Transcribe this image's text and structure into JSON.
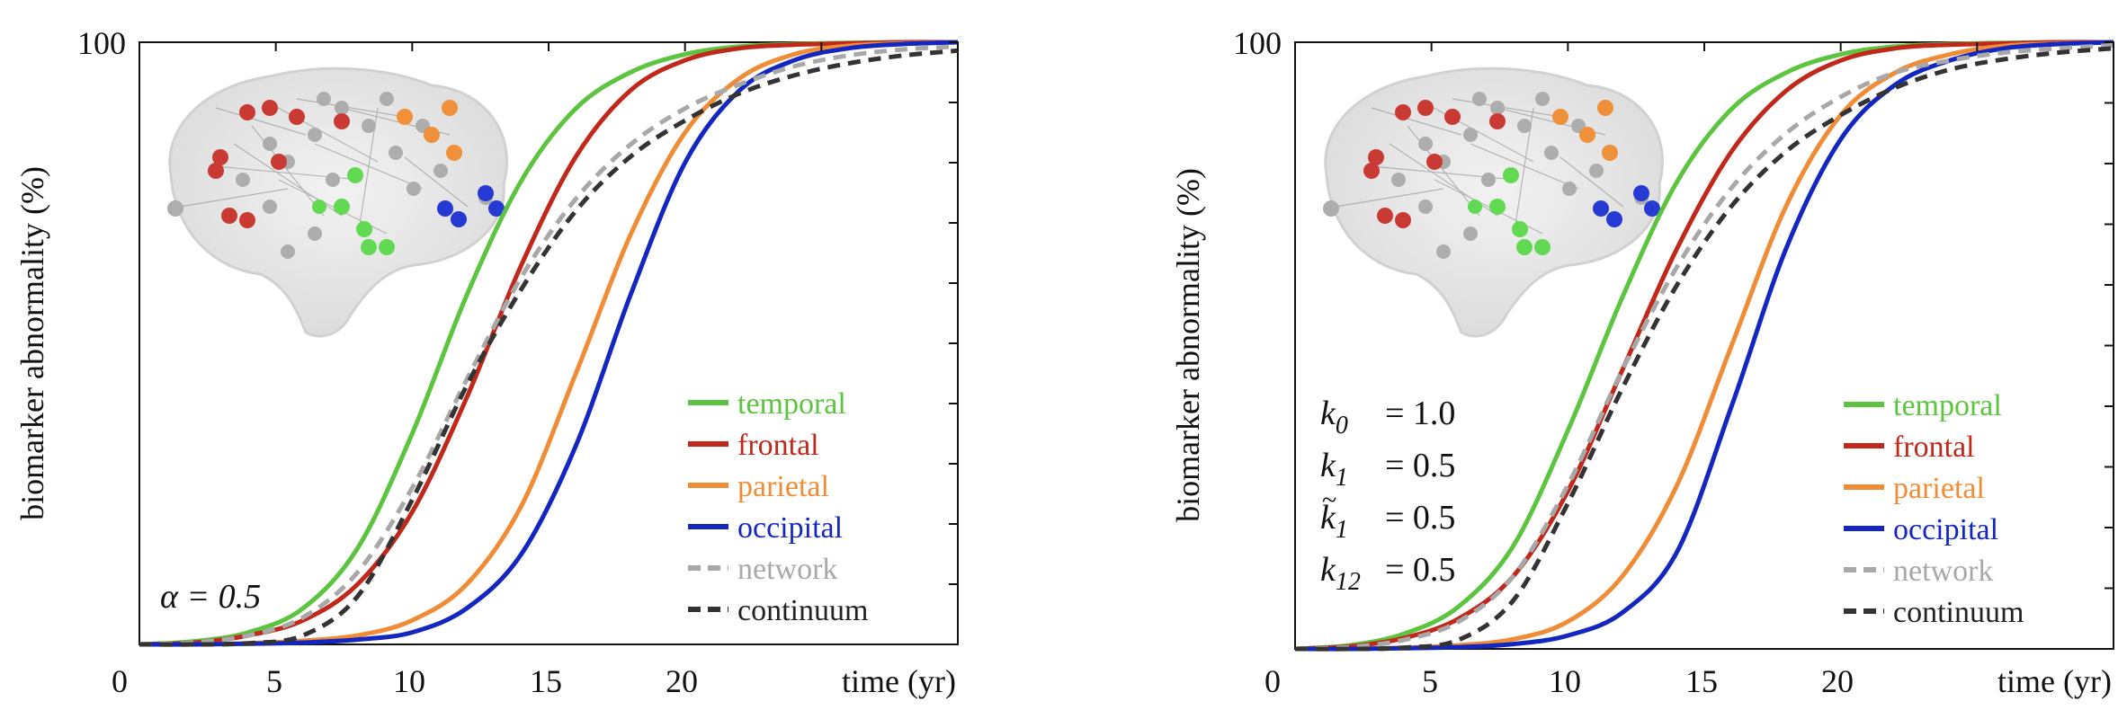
{
  "chart_data": [
    {
      "type": "line",
      "ylabel": "biomarker abnormality (%)",
      "xlabel": "time (yr)",
      "xlim": [
        0,
        30
      ],
      "ylim": [
        0,
        100
      ],
      "x_ticks": [
        "0",
        "5",
        "10",
        "15",
        "20"
      ],
      "y_ticks": [
        "100"
      ],
      "annotation": "α = 0.5",
      "legend": {
        "placement": "bottom-right",
        "entries": [
          "temporal",
          "frontal",
          "parietal",
          "occipital",
          "network",
          "continuum"
        ]
      },
      "series": [
        {
          "name": "temporal",
          "color": "#5cc43e",
          "dash": "solid",
          "x": [
            0,
            2,
            4,
            6,
            8,
            10,
            12,
            14,
            16,
            18,
            20,
            22,
            24,
            26,
            28,
            30
          ],
          "y": [
            0,
            0.5,
            2,
            6,
            16,
            35,
            58,
            77,
            89,
            95,
            98,
            99.3,
            99.7,
            99.9,
            100,
            100
          ]
        },
        {
          "name": "frontal",
          "color": "#c0281c",
          "dash": "solid",
          "x": [
            0,
            2,
            4,
            6,
            8,
            10,
            12,
            14,
            16,
            18,
            20,
            22,
            24,
            26,
            28,
            30
          ],
          "y": [
            0,
            0.3,
            1.5,
            4,
            10,
            22,
            41,
            63,
            81,
            92,
            97,
            99,
            99.6,
            99.8,
            100,
            100
          ]
        },
        {
          "name": "parietal",
          "color": "#f08c36",
          "dash": "solid",
          "x": [
            0,
            2,
            4,
            6,
            8,
            10,
            12,
            14,
            16,
            18,
            20,
            22,
            24,
            26,
            28,
            30
          ],
          "y": [
            0,
            0,
            0.2,
            0.6,
            1.5,
            4,
            10,
            23,
            45,
            68,
            85,
            94,
            98,
            99.4,
            99.8,
            100
          ]
        },
        {
          "name": "occipital",
          "color": "#1426c0",
          "dash": "solid",
          "x": [
            0,
            2,
            4,
            6,
            8,
            10,
            12,
            14,
            16,
            18,
            20,
            22,
            24,
            26,
            28,
            30
          ],
          "y": [
            0,
            0,
            0.1,
            0.3,
            0.8,
            2,
            6,
            15,
            33,
            58,
            80,
            92,
            97,
            99,
            99.7,
            100
          ]
        },
        {
          "name": "network",
          "color": "#a8a8a8",
          "dash": "dashed",
          "x": [
            0,
            2,
            4,
            6,
            8,
            10,
            12,
            14,
            16,
            18,
            20,
            22,
            24,
            26,
            28,
            30
          ],
          "y": [
            0,
            0.3,
            1.5,
            4.5,
            12,
            26,
            44,
            61,
            74,
            83,
            89,
            93,
            96,
            97.8,
            98.8,
            99.3
          ]
        },
        {
          "name": "continuum",
          "color": "#333333",
          "dash": "dashed",
          "x": [
            0,
            2,
            4,
            6,
            8,
            10,
            12,
            14,
            16,
            18,
            20,
            22,
            24,
            26,
            28,
            30
          ],
          "y": [
            0,
            0,
            0.2,
            1.5,
            8,
            24,
            43,
            59,
            72,
            81,
            87,
            91.5,
            94.5,
            96.5,
            97.8,
            98.6
          ]
        }
      ]
    },
    {
      "type": "line",
      "ylabel": "biomarker abnormality (%)",
      "xlabel": "time (yr)",
      "xlim": [
        0,
        30
      ],
      "ylim": [
        0,
        100
      ],
      "x_ticks": [
        "0",
        "5",
        "10",
        "15",
        "20"
      ],
      "y_ticks": [
        "100"
      ],
      "parameters": [
        {
          "symbol": "k",
          "subscript": "0",
          "value": "= 1.0",
          "tilde": false
        },
        {
          "symbol": "k",
          "subscript": "1",
          "value": "= 0.5",
          "tilde": false
        },
        {
          "symbol": "k",
          "subscript": "1",
          "value": "= 0.5",
          "tilde": true
        },
        {
          "symbol": "k",
          "subscript": "12",
          "value": "= 0.5",
          "tilde": false
        }
      ],
      "legend": {
        "placement": "bottom-right",
        "entries": [
          "temporal",
          "frontal",
          "parietal",
          "occipital",
          "network",
          "continuum"
        ]
      },
      "series": [
        {
          "name": "temporal",
          "color": "#5cc43e",
          "dash": "solid",
          "x": [
            0,
            2,
            4,
            6,
            8,
            10,
            12,
            14,
            16,
            18,
            20,
            22,
            24,
            26,
            28,
            30
          ],
          "y": [
            0,
            0.6,
            2.5,
            7,
            17,
            36,
            58,
            77,
            89,
            95,
            98,
            99.3,
            99.7,
            99.9,
            100,
            100
          ]
        },
        {
          "name": "frontal",
          "color": "#c0281c",
          "dash": "solid",
          "x": [
            0,
            2,
            4,
            6,
            8,
            10,
            12,
            14,
            16,
            18,
            20,
            22,
            24,
            26,
            28,
            30
          ],
          "y": [
            0,
            0.4,
            1.8,
            5,
            12,
            26,
            46,
            66,
            82,
            92,
            97,
            99,
            99.6,
            99.8,
            100,
            100
          ]
        },
        {
          "name": "parietal",
          "color": "#f08c36",
          "dash": "solid",
          "x": [
            0,
            2,
            4,
            6,
            8,
            10,
            12,
            14,
            16,
            18,
            20,
            22,
            24,
            26,
            28,
            30
          ],
          "y": [
            0,
            0,
            0.2,
            0.6,
            1.6,
            4.5,
            12,
            27,
            50,
            73,
            88,
            95,
            98,
            99.4,
            99.8,
            100
          ]
        },
        {
          "name": "occipital",
          "color": "#1426c0",
          "dash": "solid",
          "x": [
            0,
            2,
            4,
            6,
            8,
            10,
            12,
            14,
            16,
            18,
            20,
            22,
            24,
            26,
            28,
            30
          ],
          "y": [
            0,
            0,
            0.1,
            0.3,
            0.8,
            2.2,
            6,
            16,
            40,
            66,
            84,
            93,
            97,
            99,
            99.7,
            100
          ]
        },
        {
          "name": "network",
          "color": "#a8a8a8",
          "dash": "dashed",
          "x": [
            0,
            2,
            4,
            6,
            8,
            10,
            12,
            14,
            16,
            18,
            20,
            22,
            24,
            26,
            28,
            30
          ],
          "y": [
            0,
            0.3,
            1.5,
            4.5,
            12,
            27,
            46,
            63,
            76,
            85,
            91,
            95,
            97,
            98.3,
            99,
            99.5
          ]
        },
        {
          "name": "continuum",
          "color": "#333333",
          "dash": "dashed",
          "x": [
            0,
            2,
            4,
            6,
            8,
            10,
            12,
            14,
            16,
            18,
            20,
            22,
            24,
            26,
            28,
            30
          ],
          "y": [
            0,
            0,
            0.2,
            1.5,
            8,
            24,
            43,
            60,
            73,
            82,
            88,
            92.5,
            95.5,
            97.2,
            98.3,
            99
          ]
        }
      ]
    }
  ]
}
